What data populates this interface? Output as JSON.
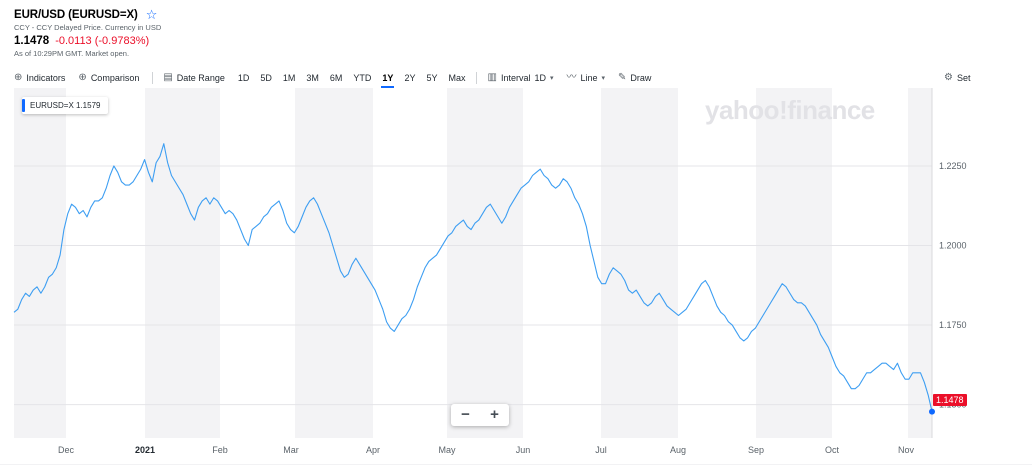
{
  "quote": {
    "title": "EUR/USD (EURUSD=X)",
    "subtitle": "CCY - CCY Delayed Price. Currency in USD",
    "price": "1.1478",
    "change": "-0.0113 (-0.9783%)",
    "as_of": "As of 10:29PM GMT. Market open.",
    "favorite_icon": "star-outline-icon"
  },
  "toolbar": {
    "indicators": "Indicators",
    "comparison": "Comparison",
    "date_range": "Date Range",
    "ranges": [
      "1D",
      "5D",
      "1M",
      "3M",
      "6M",
      "YTD",
      "1Y",
      "2Y",
      "5Y",
      "Max"
    ],
    "active_range": "1Y",
    "interval_label": "Interval",
    "interval_value": "1D",
    "line_label": "Line",
    "draw_label": "Draw",
    "settings_label": "Set"
  },
  "legend": {
    "text": "EURUSD=X 1.1579"
  },
  "watermark": "yahoo!finance",
  "last_price_tag": "1.1478",
  "colors": {
    "line": "#3d9ef2",
    "negative": "#eb0f29",
    "accent": "#0f69ff"
  },
  "chart_data": {
    "type": "line",
    "series": [
      {
        "name": "EURUSD=X",
        "values": [
          1.179,
          1.18,
          1.183,
          1.185,
          1.184,
          1.186,
          1.187,
          1.185,
          1.187,
          1.19,
          1.191,
          1.193,
          1.197,
          1.205,
          1.21,
          1.213,
          1.212,
          1.21,
          1.211,
          1.209,
          1.212,
          1.214,
          1.214,
          1.215,
          1.218,
          1.222,
          1.225,
          1.223,
          1.22,
          1.219,
          1.219,
          1.22,
          1.222,
          1.224,
          1.227,
          1.223,
          1.22,
          1.226,
          1.228,
          1.232,
          1.226,
          1.222,
          1.22,
          1.218,
          1.216,
          1.213,
          1.21,
          1.208,
          1.212,
          1.214,
          1.215,
          1.213,
          1.215,
          1.214,
          1.212,
          1.21,
          1.211,
          1.21,
          1.208,
          1.205,
          1.202,
          1.2,
          1.205,
          1.206,
          1.207,
          1.209,
          1.21,
          1.212,
          1.213,
          1.214,
          1.211,
          1.207,
          1.205,
          1.204,
          1.206,
          1.209,
          1.212,
          1.214,
          1.215,
          1.213,
          1.21,
          1.207,
          1.204,
          1.2,
          1.196,
          1.192,
          1.19,
          1.191,
          1.194,
          1.196,
          1.194,
          1.192,
          1.19,
          1.188,
          1.186,
          1.183,
          1.18,
          1.176,
          1.174,
          1.173,
          1.175,
          1.177,
          1.178,
          1.18,
          1.183,
          1.187,
          1.19,
          1.193,
          1.195,
          1.196,
          1.197,
          1.199,
          1.201,
          1.203,
          1.204,
          1.206,
          1.207,
          1.208,
          1.206,
          1.205,
          1.207,
          1.208,
          1.21,
          1.212,
          1.213,
          1.211,
          1.209,
          1.207,
          1.209,
          1.212,
          1.214,
          1.216,
          1.218,
          1.219,
          1.22,
          1.222,
          1.223,
          1.224,
          1.222,
          1.221,
          1.219,
          1.218,
          1.219,
          1.221,
          1.22,
          1.218,
          1.215,
          1.213,
          1.21,
          1.206,
          1.2,
          1.195,
          1.19,
          1.188,
          1.188,
          1.191,
          1.193,
          1.192,
          1.191,
          1.189,
          1.186,
          1.185,
          1.186,
          1.184,
          1.182,
          1.181,
          1.182,
          1.184,
          1.185,
          1.183,
          1.181,
          1.18,
          1.179,
          1.178,
          1.179,
          1.18,
          1.182,
          1.184,
          1.186,
          1.188,
          1.189,
          1.187,
          1.184,
          1.181,
          1.179,
          1.178,
          1.176,
          1.175,
          1.173,
          1.171,
          1.17,
          1.171,
          1.173,
          1.174,
          1.176,
          1.178,
          1.18,
          1.182,
          1.184,
          1.186,
          1.188,
          1.187,
          1.185,
          1.183,
          1.182,
          1.182,
          1.181,
          1.179,
          1.177,
          1.175,
          1.172,
          1.17,
          1.168,
          1.165,
          1.162,
          1.16,
          1.159,
          1.157,
          1.155,
          1.155,
          1.156,
          1.158,
          1.16,
          1.16,
          1.161,
          1.162,
          1.163,
          1.163,
          1.162,
          1.161,
          1.163,
          1.16,
          1.158,
          1.158,
          1.16,
          1.16,
          1.16,
          1.157,
          1.153,
          1.1478
        ]
      }
    ],
    "x_ticks": [
      "Dec",
      "2021",
      "Feb",
      "Mar",
      "Apr",
      "May",
      "Jun",
      "Jul",
      "Aug",
      "Sep",
      "Oct",
      "Nov"
    ],
    "y_ticks": [
      "1.2250",
      "1.2000",
      "1.1750",
      "1.1500"
    ],
    "ylim": [
      1.1395,
      1.2495
    ],
    "grid": true
  }
}
